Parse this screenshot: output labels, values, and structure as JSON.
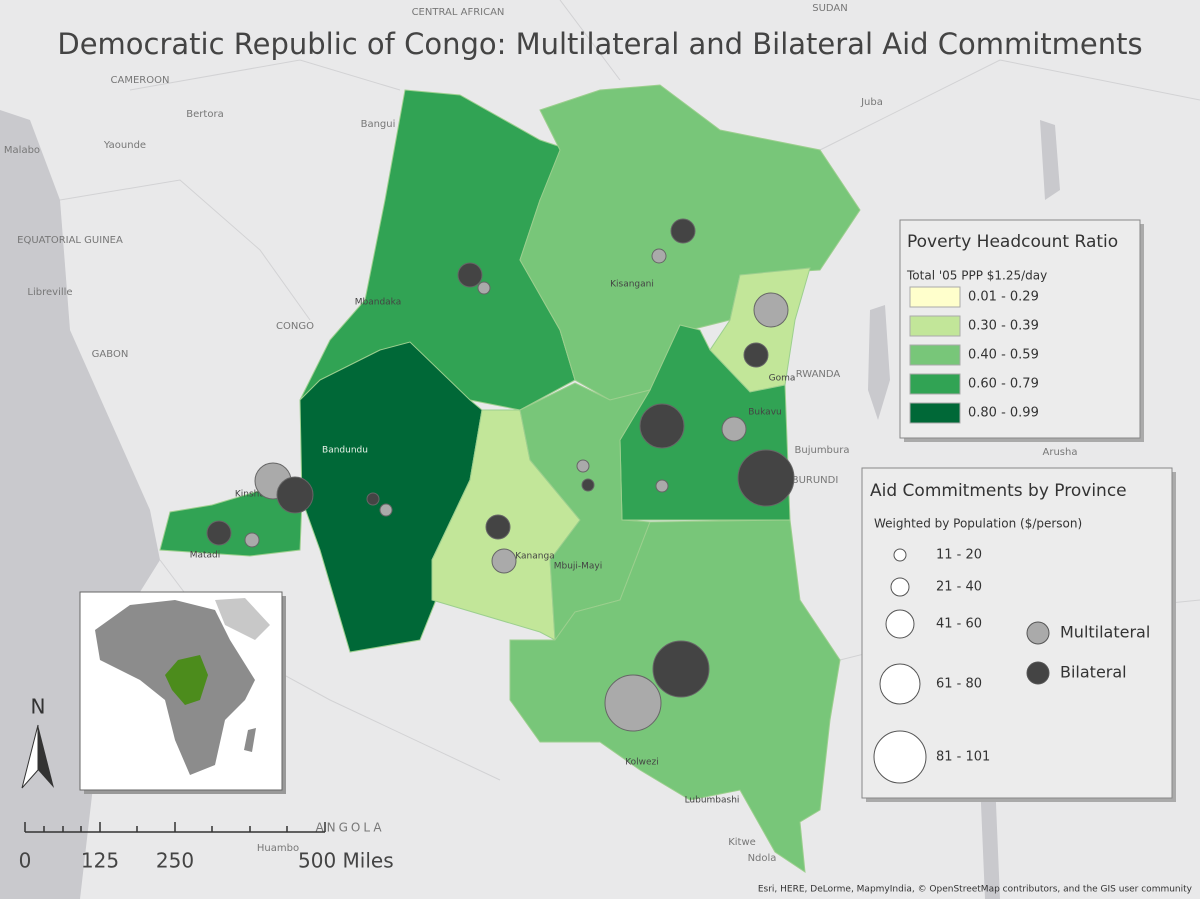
{
  "title": "Democratic Republic of Congo: Multilateral and Bilateral Aid Commitments",
  "poverty_legend": {
    "title": "Poverty Headcount Ratio",
    "subtitle": "Total '05 PPP $1.25/day",
    "classes": [
      {
        "label": "0.01 - 0.29",
        "color": "#ffffcc"
      },
      {
        "label": "0.30 - 0.39",
        "color": "#c2e699"
      },
      {
        "label": "0.40 - 0.59",
        "color": "#78c679"
      },
      {
        "label": "0.60 - 0.79",
        "color": "#31a354"
      },
      {
        "label": "0.80 - 0.99",
        "color": "#006837"
      }
    ]
  },
  "aid_legend": {
    "title": "Aid Commitments by Province",
    "subtitle": "Weighted by Population ($/person)",
    "sizes": [
      "11 - 20",
      "21 - 40",
      "41 - 60",
      "61 - 80",
      "81 - 101"
    ],
    "types": [
      {
        "label": "Multilateral",
        "color": "#aaaaaa"
      },
      {
        "label": "Bilateral",
        "color": "#444444"
      }
    ]
  },
  "place_labels": [
    "CENTRAL AFRICAN",
    "SUDAN",
    "CAMEROON",
    "Bangui",
    "Juba",
    "Bertora",
    "Yaounde",
    "Malabo",
    "EQUATORIAL GUINEA",
    "Libreville",
    "CONGO",
    "GABON",
    "Mbandaka",
    "Kisangani",
    "Bandundu",
    "Kananga",
    "Mbuji-Mayi",
    "Kolwezi",
    "Lubumbashi",
    "Bukavu",
    "Goma",
    "RWANDA",
    "Bujumbura",
    "BURUNDI",
    "Arusha",
    "Kitwe",
    "Ndola",
    "ANGOLA",
    "Huambo",
    "Matadi",
    "Kinshasa"
  ],
  "scale_bar": {
    "labels": [
      "0",
      "125",
      "250",
      "500 Miles"
    ]
  },
  "north": "N",
  "attribution": "Esri, HERE, DeLorme, MapmyIndia, © OpenStreetMap contributors, and the GIS user community"
}
